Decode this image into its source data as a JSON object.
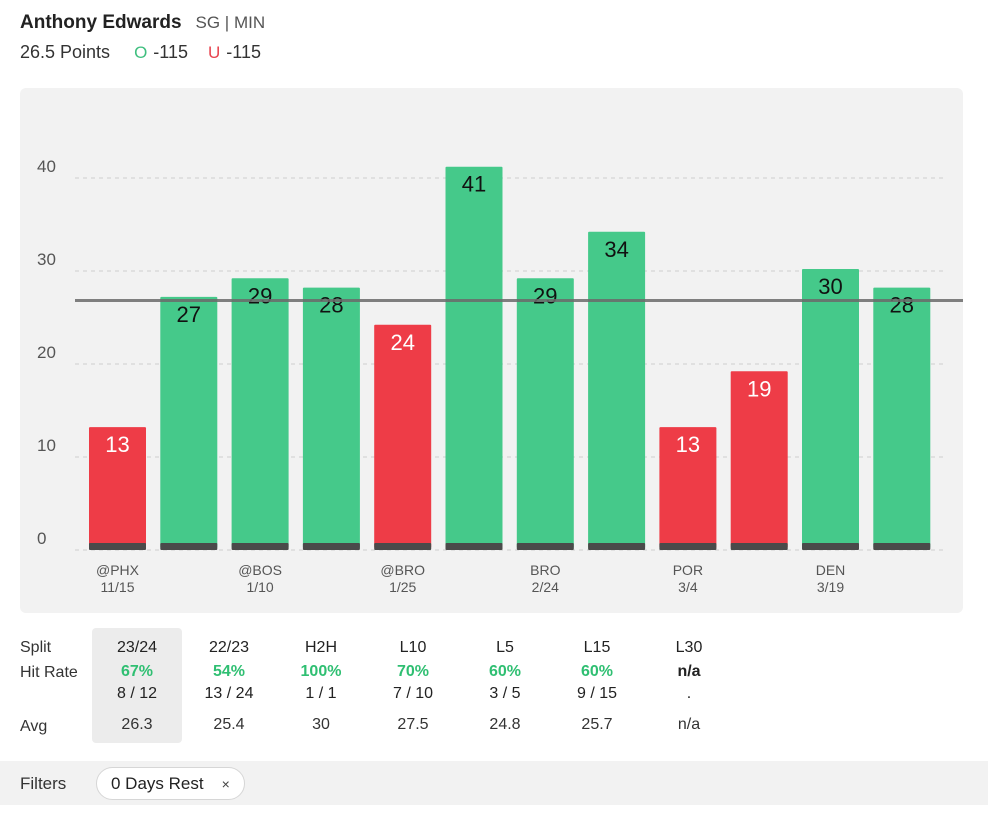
{
  "player": {
    "name": "Anthony Edwards",
    "meta": "SG | MIN"
  },
  "line": {
    "label": "26.5 Points",
    "over_mark": "O",
    "over_odds": "-115",
    "under_mark": "U",
    "under_odds": "-115"
  },
  "colors": {
    "over": "#45c98a",
    "under": "#ee3c47",
    "baseline": "#4a4a4a",
    "line": "#6b6b6b",
    "grid": "#d9d9d9"
  },
  "chart_data": {
    "type": "bar",
    "threshold": 26.5,
    "ylim": [
      0,
      50
    ],
    "yticks": [
      0,
      10,
      20,
      30,
      40
    ],
    "values": [
      13,
      27,
      29,
      28,
      24,
      41,
      29,
      34,
      13,
      19,
      30,
      28
    ],
    "hit": [
      false,
      true,
      true,
      true,
      false,
      true,
      true,
      true,
      false,
      false,
      true,
      true
    ],
    "xlabels": [
      {
        "index": 0,
        "opp": "@PHX",
        "date": "11/15"
      },
      {
        "index": 2,
        "opp": "@BOS",
        "date": "1/10"
      },
      {
        "index": 4,
        "opp": "@BRO",
        "date": "1/25"
      },
      {
        "index": 6,
        "opp": "BRO",
        "date": "2/24"
      },
      {
        "index": 8,
        "opp": "POR",
        "date": "3/4"
      },
      {
        "index": 10,
        "opp": "DEN",
        "date": "3/19"
      }
    ]
  },
  "splits": {
    "row_labels": {
      "split": "Split",
      "hit_rate": "Hit Rate",
      "avg": "Avg"
    },
    "columns": [
      {
        "label": "23/24",
        "rate": "67%",
        "frac": "8 / 12",
        "avg": "26.3"
      },
      {
        "label": "22/23",
        "rate": "54%",
        "frac": "13 / 24",
        "avg": "25.4"
      },
      {
        "label": "H2H",
        "rate": "100%",
        "frac": "1 / 1",
        "avg": "30"
      },
      {
        "label": "L10",
        "rate": "70%",
        "frac": "7 / 10",
        "avg": "27.5"
      },
      {
        "label": "L5",
        "rate": "60%",
        "frac": "3 / 5",
        "avg": "24.8"
      },
      {
        "label": "L15",
        "rate": "60%",
        "frac": "9 / 15",
        "avg": "25.7"
      },
      {
        "label": "L30",
        "rate": "n/a",
        "frac": ".",
        "avg": "n/a"
      }
    ]
  },
  "filters": {
    "label": "Filters",
    "chip_label": "0 Days Rest",
    "chip_close": "×"
  }
}
